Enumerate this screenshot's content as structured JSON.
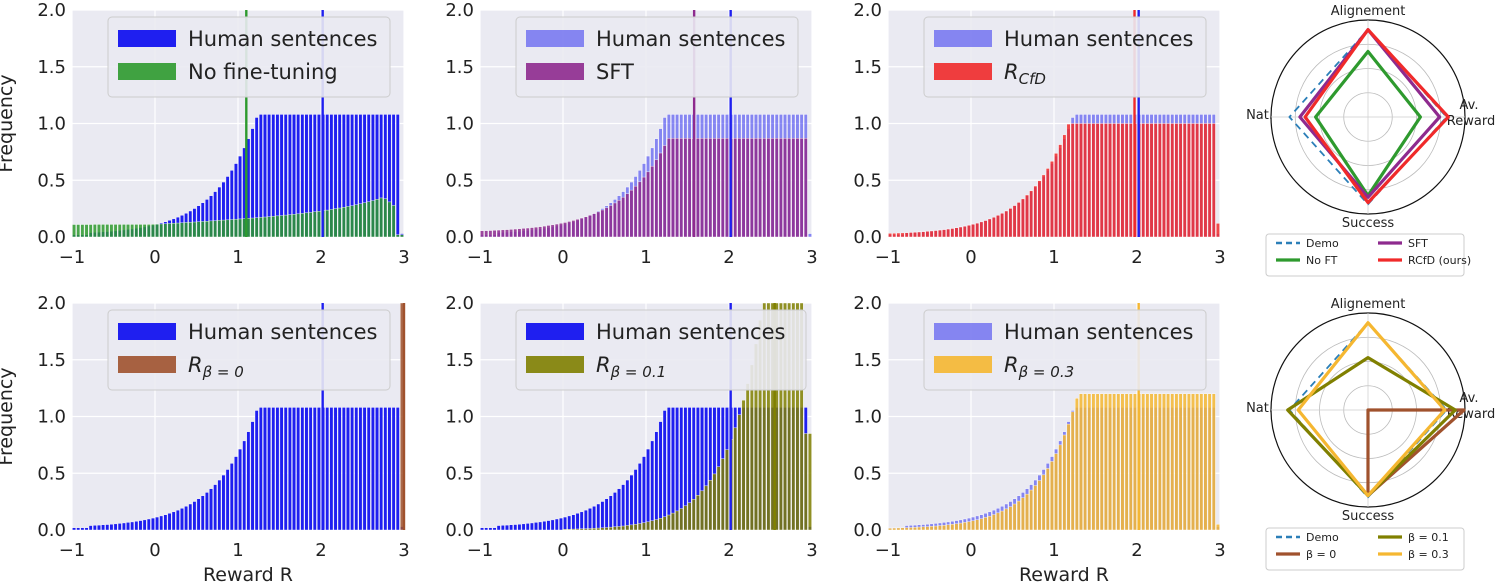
{
  "colors": {
    "human": "#1f1ff0",
    "nofinetune": "#2e9a2e",
    "sft": "#8e2a8e",
    "rcfd": "#f02a2a",
    "beta0": "#a0522d",
    "beta01": "#808000",
    "beta03": "#f5b731",
    "demo": "#2b7fb8",
    "panel_bg": "#eaeaf2"
  },
  "chart_data": [
    {
      "type": "bar",
      "id": "p1",
      "ylabel": "Frequency",
      "xlabel": "",
      "xlim": [
        -1,
        3
      ],
      "ylim": [
        0,
        2
      ],
      "xticks": [
        "−1",
        "0",
        "1",
        "2",
        "3"
      ],
      "yticks": [
        "0.0",
        "0.5",
        "1.0",
        "1.5",
        "2.0"
      ],
      "legend": {
        "position": "top-left",
        "entries": [
          "Human sentences",
          "No fine-tuning"
        ]
      },
      "vlines": [
        1.1,
        2.02
      ],
      "series": [
        {
          "name": "Human sentences",
          "shape": "human",
          "values": []
        },
        {
          "name": "No fine-tuning",
          "shape": "flat",
          "values": []
        }
      ]
    },
    {
      "type": "bar",
      "id": "p2",
      "ylabel": "",
      "xlabel": "",
      "xlim": [
        -1,
        3
      ],
      "ylim": [
        0,
        2
      ],
      "xticks": [
        "−1",
        "0",
        "1",
        "2",
        "3"
      ],
      "yticks": [
        "0.0",
        "0.5",
        "1.0",
        "1.5",
        "2.0"
      ],
      "legend": {
        "position": "top-left",
        "entries": [
          "Human sentences",
          "SFT"
        ]
      },
      "vlines": [
        1.58,
        2.02
      ],
      "series": [
        {
          "name": "Human sentences",
          "shape": "human",
          "values": []
        },
        {
          "name": "SFT",
          "shape": "sft",
          "values": []
        }
      ]
    },
    {
      "type": "bar",
      "id": "p3",
      "ylabel": "",
      "xlabel": "",
      "xlim": [
        -1,
        3
      ],
      "ylim": [
        0,
        2
      ],
      "xticks": [
        "−1",
        "0",
        "1",
        "2",
        "3"
      ],
      "yticks": [
        "0.0",
        "0.5",
        "1.0",
        "1.5",
        "2.0"
      ],
      "legend": {
        "position": "top-left",
        "entries": [
          "Human sentences",
          "R_CfD"
        ]
      },
      "vlines": [
        1.97,
        2.02
      ],
      "series": [
        {
          "name": "Human sentences",
          "shape": "human",
          "values": []
        },
        {
          "name": "R_CfD",
          "shape": "rcfd",
          "values": []
        }
      ]
    },
    {
      "type": "bar",
      "id": "p4",
      "ylabel": "Frequency",
      "xlabel": "Reward R",
      "xlim": [
        -1,
        3
      ],
      "ylim": [
        0,
        2
      ],
      "xticks": [
        "−1",
        "0",
        "1",
        "2",
        "3"
      ],
      "yticks": [
        "0.0",
        "0.5",
        "1.0",
        "1.5",
        "2.0"
      ],
      "legend": {
        "position": "top-left",
        "entries": [
          "Human sentences",
          "R_β=0"
        ]
      },
      "vlines": [
        2.02,
        3.0
      ],
      "series": [
        {
          "name": "Human sentences",
          "shape": "human",
          "values": []
        },
        {
          "name": "R_β=0",
          "shape": "spike",
          "values": []
        }
      ]
    },
    {
      "type": "bar",
      "id": "p5",
      "ylabel": "",
      "xlabel": "",
      "xlim": [
        -1,
        3
      ],
      "ylim": [
        0,
        2
      ],
      "xticks": [
        "−1",
        "0",
        "1",
        "2",
        "3"
      ],
      "yticks": [
        "0.0",
        "0.5",
        "1.0",
        "1.5",
        "2.0"
      ],
      "legend": {
        "position": "top-left",
        "entries": [
          "Human sentences",
          "R_β=0.1"
        ]
      },
      "vlines": [
        2.02,
        2.55
      ],
      "series": [
        {
          "name": "Human sentences",
          "shape": "human",
          "values": []
        },
        {
          "name": "R_β=0.1",
          "shape": "beta01",
          "values": []
        }
      ]
    },
    {
      "type": "bar",
      "id": "p6",
      "ylabel": "",
      "xlabel": "Reward R",
      "xlim": [
        -1,
        3
      ],
      "ylim": [
        0,
        2
      ],
      "xticks": [
        "−1",
        "0",
        "1",
        "2",
        "3"
      ],
      "yticks": [
        "0.0",
        "0.5",
        "1.0",
        "1.5",
        "2.0"
      ],
      "legend": {
        "position": "top-left",
        "entries": [
          "Human sentences",
          "R_β=0.3"
        ]
      },
      "vlines": [
        2.02
      ],
      "series": [
        {
          "name": "Human sentences",
          "shape": "human",
          "values": []
        },
        {
          "name": "R_β=0.3",
          "shape": "beta03",
          "values": []
        }
      ]
    },
    {
      "type": "radar",
      "id": "r1",
      "axes": [
        "Alignement",
        "Av. Reward",
        "Success",
        "Nat."
      ],
      "legend": [
        "Demo",
        "SFT",
        "No FT",
        "RCfD (ours)"
      ],
      "series": [
        {
          "name": "Demo",
          "values": [
            1.0,
            0.9,
            1.0,
            0.9
          ]
        },
        {
          "name": "No FT",
          "values": [
            0.75,
            0.6,
            0.9,
            0.6
          ]
        },
        {
          "name": "SFT",
          "values": [
            1.0,
            0.82,
            0.92,
            0.78
          ]
        },
        {
          "name": "RCfD (ours)",
          "values": [
            1.0,
            0.92,
            0.98,
            0.72
          ]
        }
      ]
    },
    {
      "type": "radar",
      "id": "r2",
      "axes": [
        "Alignement",
        "Av. Reward",
        "Success",
        "Nat."
      ],
      "legend": [
        "Demo",
        "β = 0.1",
        "β = 0",
        "β = 0.3"
      ],
      "series": [
        {
          "name": "Demo",
          "values": [
            1.0,
            0.9,
            1.0,
            0.9
          ]
        },
        {
          "name": "β = 0",
          "values": [
            0.0,
            1.1,
            0.98,
            0.0
          ]
        },
        {
          "name": "β = 0.1",
          "values": [
            0.6,
            1.0,
            0.98,
            0.92
          ]
        },
        {
          "name": "β = 0.3",
          "values": [
            1.0,
            0.88,
            0.98,
            0.8
          ]
        }
      ]
    }
  ]
}
